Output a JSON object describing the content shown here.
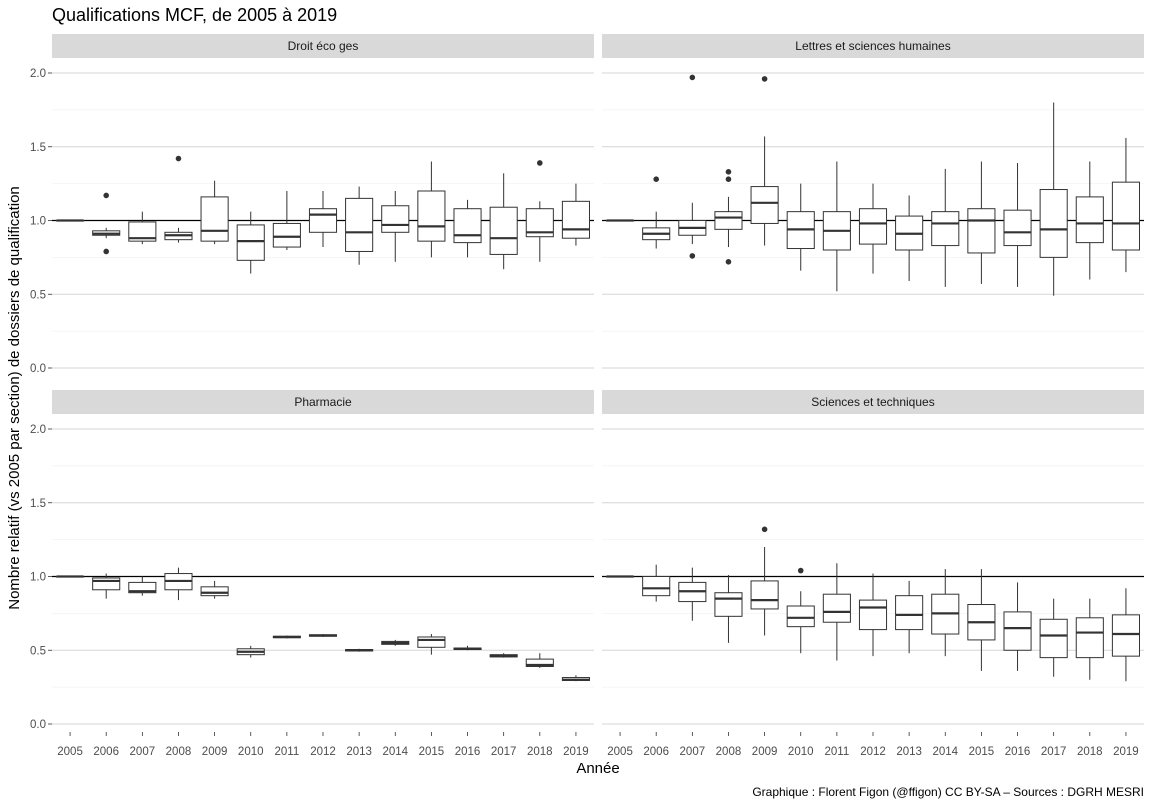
{
  "chart_data": {
    "type": "boxplot",
    "title": "Qualifications MCF, de 2005 à 2019",
    "xlabel": "Année",
    "ylabel": "Nombre relatif (vs 2005 par section) de dossiers de qualification",
    "caption": "Graphique : Florent Figon (@ffigon) CC BY-SA – Sources : DGRH MESRI",
    "ylim": [
      0,
      2.0
    ],
    "y_ticks": [
      "0.0",
      "0.5",
      "1.0",
      "1.5",
      "2.0"
    ],
    "y_tick_values": [
      0,
      0.5,
      1.0,
      1.5,
      2.0
    ],
    "reference_line": 1.0,
    "grid": true,
    "x": [
      "2005",
      "2006",
      "2007",
      "2008",
      "2009",
      "2010",
      "2011",
      "2012",
      "2013",
      "2014",
      "2015",
      "2016",
      "2017",
      "2018",
      "2019"
    ],
    "panels": [
      {
        "name": "Droit éco ges",
        "boxes": [
          {
            "min": 1.0,
            "q1": 1.0,
            "median": 1.0,
            "q3": 1.0,
            "max": 1.0,
            "outliers": []
          },
          {
            "min": 0.88,
            "q1": 0.9,
            "median": 0.91,
            "q3": 0.93,
            "max": 0.95,
            "outliers": [
              1.17,
              0.79
            ]
          },
          {
            "min": 0.84,
            "q1": 0.86,
            "median": 0.88,
            "q3": 0.99,
            "max": 1.06,
            "outliers": []
          },
          {
            "min": 0.85,
            "q1": 0.87,
            "median": 0.9,
            "q3": 0.92,
            "max": 0.95,
            "outliers": [
              1.42
            ]
          },
          {
            "min": 0.84,
            "q1": 0.86,
            "median": 0.93,
            "q3": 1.16,
            "max": 1.27,
            "outliers": []
          },
          {
            "min": 0.64,
            "q1": 0.73,
            "median": 0.86,
            "q3": 0.97,
            "max": 1.06,
            "outliers": []
          },
          {
            "min": 0.8,
            "q1": 0.82,
            "median": 0.89,
            "q3": 0.98,
            "max": 1.2,
            "outliers": []
          },
          {
            "min": 0.82,
            "q1": 0.92,
            "median": 1.04,
            "q3": 1.08,
            "max": 1.2,
            "outliers": []
          },
          {
            "min": 0.7,
            "q1": 0.79,
            "median": 0.92,
            "q3": 1.15,
            "max": 1.23,
            "outliers": []
          },
          {
            "min": 0.72,
            "q1": 0.92,
            "median": 0.97,
            "q3": 1.1,
            "max": 1.2,
            "outliers": []
          },
          {
            "min": 0.75,
            "q1": 0.86,
            "median": 0.96,
            "q3": 1.2,
            "max": 1.4,
            "outliers": []
          },
          {
            "min": 0.75,
            "q1": 0.85,
            "median": 0.9,
            "q3": 1.08,
            "max": 1.14,
            "outliers": []
          },
          {
            "min": 0.67,
            "q1": 0.77,
            "median": 0.88,
            "q3": 1.09,
            "max": 1.32,
            "outliers": []
          },
          {
            "min": 0.72,
            "q1": 0.89,
            "median": 0.92,
            "q3": 1.08,
            "max": 1.13,
            "outliers": [
              1.39
            ]
          },
          {
            "min": 0.83,
            "q1": 0.88,
            "median": 0.94,
            "q3": 1.13,
            "max": 1.25,
            "outliers": []
          }
        ]
      },
      {
        "name": "Lettres et sciences humaines",
        "boxes": [
          {
            "min": 1.0,
            "q1": 1.0,
            "median": 1.0,
            "q3": 1.0,
            "max": 1.0,
            "outliers": []
          },
          {
            "min": 0.81,
            "q1": 0.87,
            "median": 0.91,
            "q3": 0.95,
            "max": 1.06,
            "outliers": [
              1.28
            ]
          },
          {
            "min": 0.84,
            "q1": 0.9,
            "median": 0.95,
            "q3": 1.0,
            "max": 1.12,
            "outliers": [
              1.97,
              0.76
            ]
          },
          {
            "min": 0.82,
            "q1": 0.94,
            "median": 1.02,
            "q3": 1.06,
            "max": 1.16,
            "outliers": [
              1.33,
              1.28,
              0.72
            ]
          },
          {
            "min": 0.83,
            "q1": 0.98,
            "median": 1.12,
            "q3": 1.23,
            "max": 1.57,
            "outliers": [
              1.96
            ]
          },
          {
            "min": 0.66,
            "q1": 0.81,
            "median": 0.94,
            "q3": 1.06,
            "max": 1.25,
            "outliers": []
          },
          {
            "min": 0.52,
            "q1": 0.8,
            "median": 0.93,
            "q3": 1.06,
            "max": 1.4,
            "outliers": []
          },
          {
            "min": 0.64,
            "q1": 0.84,
            "median": 0.98,
            "q3": 1.08,
            "max": 1.25,
            "outliers": []
          },
          {
            "min": 0.59,
            "q1": 0.8,
            "median": 0.91,
            "q3": 1.03,
            "max": 1.17,
            "outliers": []
          },
          {
            "min": 0.55,
            "q1": 0.83,
            "median": 0.98,
            "q3": 1.06,
            "max": 1.35,
            "outliers": []
          },
          {
            "min": 0.57,
            "q1": 0.78,
            "median": 1.0,
            "q3": 1.08,
            "max": 1.4,
            "outliers": []
          },
          {
            "min": 0.55,
            "q1": 0.83,
            "median": 0.92,
            "q3": 1.07,
            "max": 1.39,
            "outliers": []
          },
          {
            "min": 0.49,
            "q1": 0.75,
            "median": 0.94,
            "q3": 1.21,
            "max": 1.8,
            "outliers": []
          },
          {
            "min": 0.6,
            "q1": 0.85,
            "median": 0.98,
            "q3": 1.16,
            "max": 1.4,
            "outliers": []
          },
          {
            "min": 0.65,
            "q1": 0.8,
            "median": 0.98,
            "q3": 1.26,
            "max": 1.56,
            "outliers": []
          }
        ]
      },
      {
        "name": "Pharmacie",
        "boxes": [
          {
            "min": 1.0,
            "q1": 1.0,
            "median": 1.0,
            "q3": 1.0,
            "max": 1.0,
            "outliers": []
          },
          {
            "min": 0.85,
            "q1": 0.91,
            "median": 0.97,
            "q3": 0.99,
            "max": 1.02,
            "outliers": []
          },
          {
            "min": 0.87,
            "q1": 0.89,
            "median": 0.9,
            "q3": 0.96,
            "max": 1.0,
            "outliers": []
          },
          {
            "min": 0.84,
            "q1": 0.91,
            "median": 0.97,
            "q3": 1.02,
            "max": 1.06,
            "outliers": []
          },
          {
            "min": 0.85,
            "q1": 0.87,
            "median": 0.89,
            "q3": 0.93,
            "max": 0.97,
            "outliers": []
          },
          {
            "min": 0.45,
            "q1": 0.47,
            "median": 0.49,
            "q3": 0.51,
            "max": 0.53,
            "outliers": []
          },
          {
            "min": 0.58,
            "q1": 0.585,
            "median": 0.59,
            "q3": 0.595,
            "max": 0.6,
            "outliers": []
          },
          {
            "min": 0.59,
            "q1": 0.595,
            "median": 0.6,
            "q3": 0.605,
            "max": 0.61,
            "outliers": []
          },
          {
            "min": 0.49,
            "q1": 0.495,
            "median": 0.5,
            "q3": 0.505,
            "max": 0.51,
            "outliers": []
          },
          {
            "min": 0.53,
            "q1": 0.54,
            "median": 0.55,
            "q3": 0.56,
            "max": 0.57,
            "outliers": []
          },
          {
            "min": 0.47,
            "q1": 0.52,
            "median": 0.57,
            "q3": 0.59,
            "max": 0.61,
            "outliers": []
          },
          {
            "min": 0.5,
            "q1": 0.505,
            "median": 0.51,
            "q3": 0.515,
            "max": 0.53,
            "outliers": []
          },
          {
            "min": 0.45,
            "q1": 0.455,
            "median": 0.46,
            "q3": 0.47,
            "max": 0.48,
            "outliers": []
          },
          {
            "min": 0.38,
            "q1": 0.39,
            "median": 0.4,
            "q3": 0.44,
            "max": 0.48,
            "outliers": []
          },
          {
            "min": 0.29,
            "q1": 0.295,
            "median": 0.3,
            "q3": 0.315,
            "max": 0.33,
            "outliers": []
          }
        ]
      },
      {
        "name": "Sciences et techniques",
        "boxes": [
          {
            "min": 1.0,
            "q1": 1.0,
            "median": 1.0,
            "q3": 1.0,
            "max": 1.0,
            "outliers": []
          },
          {
            "min": 0.83,
            "q1": 0.87,
            "median": 0.92,
            "q3": 1.0,
            "max": 1.08,
            "outliers": []
          },
          {
            "min": 0.7,
            "q1": 0.83,
            "median": 0.9,
            "q3": 0.96,
            "max": 1.06,
            "outliers": []
          },
          {
            "min": 0.55,
            "q1": 0.73,
            "median": 0.85,
            "q3": 0.89,
            "max": 1.01,
            "outliers": []
          },
          {
            "min": 0.6,
            "q1": 0.78,
            "median": 0.84,
            "q3": 0.97,
            "max": 1.2,
            "outliers": [
              1.32
            ]
          },
          {
            "min": 0.48,
            "q1": 0.66,
            "median": 0.72,
            "q3": 0.8,
            "max": 0.9,
            "outliers": [
              1.04
            ]
          },
          {
            "min": 0.43,
            "q1": 0.69,
            "median": 0.76,
            "q3": 0.88,
            "max": 1.09,
            "outliers": []
          },
          {
            "min": 0.46,
            "q1": 0.64,
            "median": 0.79,
            "q3": 0.84,
            "max": 1.02,
            "outliers": []
          },
          {
            "min": 0.48,
            "q1": 0.64,
            "median": 0.74,
            "q3": 0.87,
            "max": 0.97,
            "outliers": []
          },
          {
            "min": 0.46,
            "q1": 0.61,
            "median": 0.75,
            "q3": 0.88,
            "max": 1.05,
            "outliers": []
          },
          {
            "min": 0.36,
            "q1": 0.57,
            "median": 0.69,
            "q3": 0.81,
            "max": 1.05,
            "outliers": []
          },
          {
            "min": 0.36,
            "q1": 0.5,
            "median": 0.65,
            "q3": 0.76,
            "max": 0.96,
            "outliers": []
          },
          {
            "min": 0.32,
            "q1": 0.45,
            "median": 0.6,
            "q3": 0.71,
            "max": 0.85,
            "outliers": []
          },
          {
            "min": 0.3,
            "q1": 0.45,
            "median": 0.62,
            "q3": 0.72,
            "max": 0.85,
            "outliers": []
          },
          {
            "min": 0.29,
            "q1": 0.46,
            "median": 0.61,
            "q3": 0.74,
            "max": 0.92,
            "outliers": []
          }
        ]
      }
    ]
  }
}
